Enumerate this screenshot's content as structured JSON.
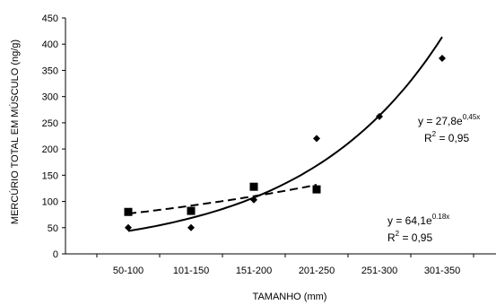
{
  "chart_data": {
    "type": "scatter",
    "title": "",
    "xlabel": "TAMANHO (mm)",
    "ylabel": "MERCÚRIO TOTAL EM MÚSCULO (ng/g)",
    "categories": [
      "50-100",
      "101-150",
      "151-200",
      "201-250",
      "251-300",
      "301-350"
    ],
    "ylim": [
      0,
      450
    ],
    "yticks": [
      0,
      50,
      100,
      150,
      200,
      250,
      300,
      350,
      400,
      450
    ],
    "grid": false,
    "legend": "none",
    "series": [
      {
        "marker": "diamond",
        "line_style": "solid",
        "values": [
          50,
          50,
          103,
          220,
          262,
          373
        ],
        "trend": {
          "a": 27.8,
          "b": 0.45
        },
        "equation": {
          "prefix": "y = 27,8e",
          "exponent": "0,45x",
          "r2_prefix": "R",
          "r2_sup": "2",
          "r2_suffix": " = 0,95"
        }
      },
      {
        "marker": "square",
        "line_style": "dashed",
        "values": [
          80,
          82,
          128,
          123
        ],
        "trend": {
          "a": 64.1,
          "b": 0.18
        },
        "equation": {
          "prefix": "y = 64,1e",
          "exponent": "0.18x",
          "r2_prefix": "R",
          "r2_sup": "2",
          "r2_suffix": " = 0,95"
        }
      }
    ]
  }
}
